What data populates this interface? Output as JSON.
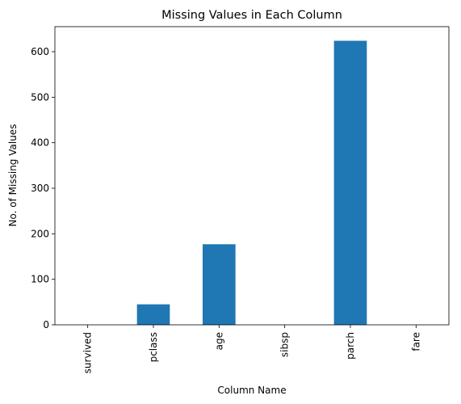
{
  "chart_data": {
    "type": "bar",
    "title": "Missing Values in Each Column",
    "xlabel": "Column Name",
    "ylabel": "No. of Missing Values",
    "categories": [
      "survived",
      "pclass",
      "age",
      "sibsp",
      "parch",
      "fare"
    ],
    "values": [
      0,
      45,
      177,
      0,
      624,
      0
    ],
    "ylim": [
      0,
      655
    ],
    "yticks": [
      0,
      100,
      200,
      300,
      400,
      500,
      600
    ],
    "bar_color": "#1f77b4",
    "grid": false,
    "legend": "none"
  }
}
